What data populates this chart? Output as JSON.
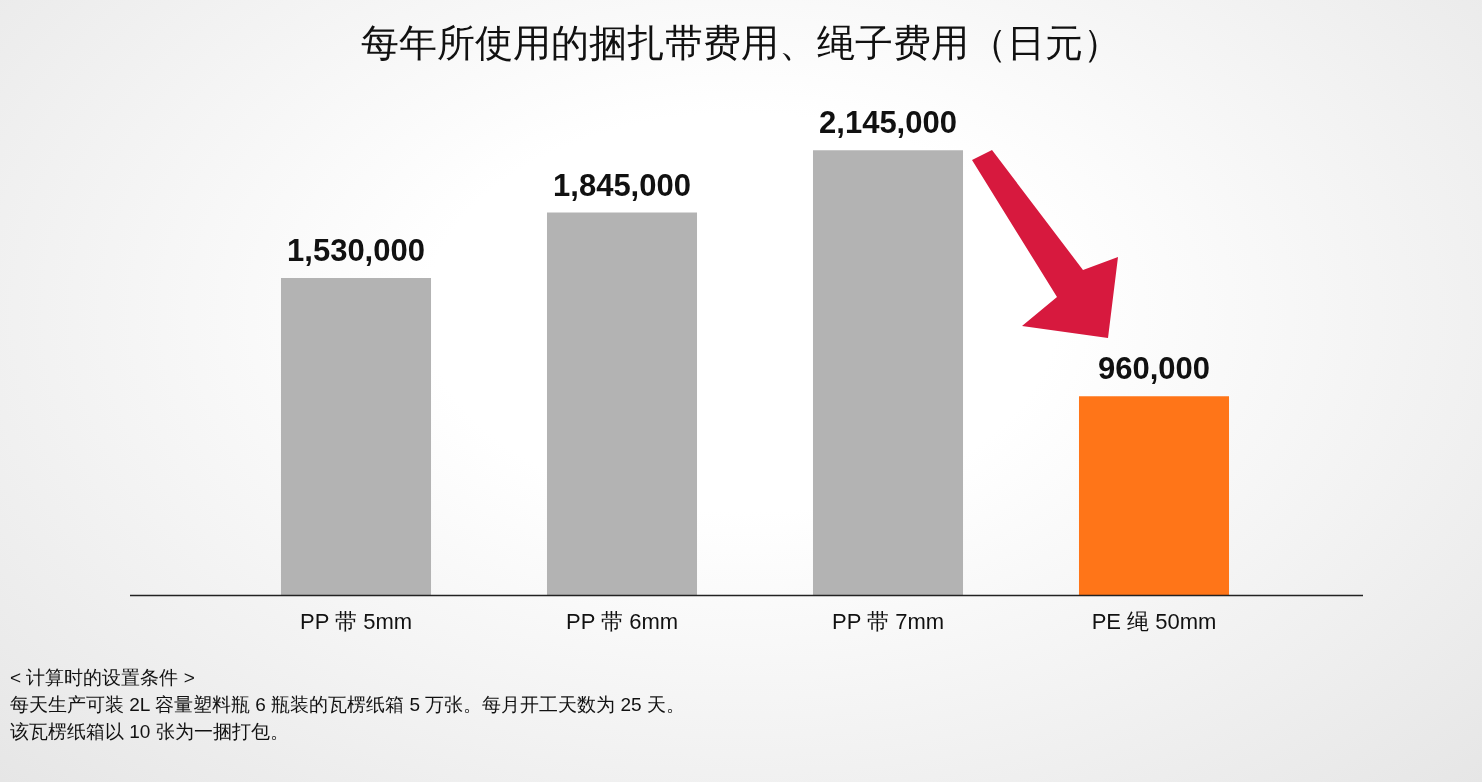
{
  "chart_data": {
    "type": "bar",
    "title": "每年所使用的捆扎带费用、绳子费用（日元）",
    "categories": [
      "PP 带 5mm",
      "PP 带 6mm",
      "PP 带 7mm",
      "PE 绳 50mm"
    ],
    "values": [
      1530000,
      1845000,
      2145000,
      960000
    ],
    "colors": [
      "#b3b3b3",
      "#b3b3b3",
      "#b3b3b3",
      "#ff7518"
    ],
    "value_labels": [
      "1,530,000",
      "1,845,000",
      "2,145,000",
      "960,000"
    ],
    "annotations": [
      "< 计算时的设置条件 >",
      "每天生产可装 2L 容量塑料瓶 6 瓶装的瓦楞纸箱 5 万张。每月开工天数为 25 天。",
      "该瓦楞纸箱以 10 张为一捆打包。"
    ]
  }
}
